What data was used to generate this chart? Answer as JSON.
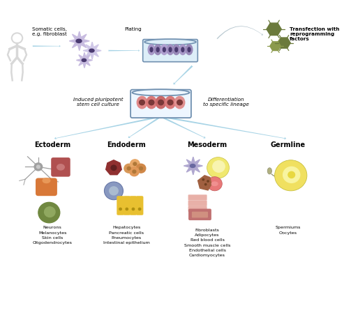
{
  "background_color": "#ffffff",
  "fig_width": 5.03,
  "fig_height": 4.65,
  "dpi": 100,
  "top_row": {
    "label1": "Somatic cells,\ne.g. fibroblast",
    "label2": "Plating",
    "label3": "Transfection with\nreprogramming\nfactors"
  },
  "middle_row": {
    "label_left": "Induced pluripotent\nstem cell culture",
    "label_right": "Differentiation\nto specific lineage"
  },
  "bottom_headers": [
    "Ectoderm",
    "Endoderm",
    "Mesoderm",
    "Germline"
  ],
  "bottom_labels": [
    "Neurons\nMelanocytes\nSkin cells\nOligodendrocytes",
    "Hepatocytes\nPancreatic cells\nPneumocytes\nIntestinal epithelium",
    "Fibroblasts\nAdipocytes\nRed blood cells\nSmooth muscle cells\nEndothelial cells\nCardiomyocytes",
    "Spermiums\nOocytes"
  ],
  "arrow_color": "#a8d4e6",
  "cell_purple_light": "#c8bce0",
  "cell_purple_dark": "#5a4a80",
  "cell_nucleus": "#4a3a70",
  "dish_fill": "#ddeef8",
  "dish_border": "#7090b0",
  "ipsc_pink": "#e08888",
  "ipsc_nucleus": "#7a3838",
  "virus_color": "#6b7a3c",
  "virus_color2": "#8b9a4c",
  "transfect_arrow": "#b0ccd8",
  "ecto_neuron": "#a0a0a0",
  "ecto_red_cell": "#b05050",
  "ecto_red_inner": "#c87878",
  "ecto_orange": "#d87838",
  "ecto_green": "#708840",
  "ecto_green_inner": "#90a860",
  "endo_hex": "#903030",
  "endo_hex_inner": "#602020",
  "endo_pancreas": "#d89858",
  "endo_pneumo": "#8898c0",
  "endo_pneumo_inner": "#aabbd0",
  "endo_intestine": "#e8c030",
  "meso_fibro": "#b0a8d0",
  "meso_fibro_dark": "#6868a0",
  "meso_adipo": "#f0e870",
  "meso_adipo_inner": "#f8f4b0",
  "meso_rbc": "#e87878",
  "meso_brown": "#a06040",
  "meso_muscle": "#e8b0a8",
  "meso_endo_box": "#c07070",
  "germ_sperm": "#b0b080",
  "germ_oocyte": "#f0e060",
  "germ_oocyte_inner": "#f8f4a0"
}
